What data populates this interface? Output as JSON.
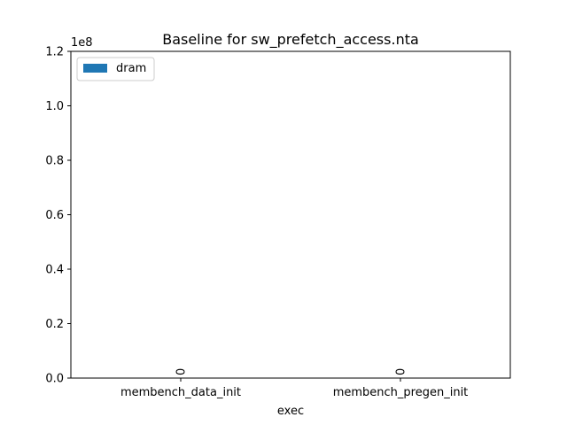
{
  "chart_data": {
    "type": "bar",
    "title": "Baseline for sw_prefetch_access.nta",
    "xlabel": "exec",
    "ylabel": "",
    "categories": [
      "membench_data_init",
      "membench_pregen_init"
    ],
    "series": [
      {
        "name": "dram",
        "values": [
          0,
          0
        ],
        "data_labels": [
          "0",
          "0"
        ],
        "color": "#1f77b4"
      }
    ],
    "ylim": [
      0,
      120000000
    ],
    "y_ticks": [
      0,
      20000000,
      40000000,
      60000000,
      80000000,
      100000000,
      120000000
    ],
    "y_tick_labels": [
      "0.0",
      "0.2",
      "0.4",
      "0.6",
      "0.8",
      "1.0",
      "1.2"
    ],
    "y_offset_label": "1e8",
    "grid": false,
    "legend_position": "top-left"
  }
}
